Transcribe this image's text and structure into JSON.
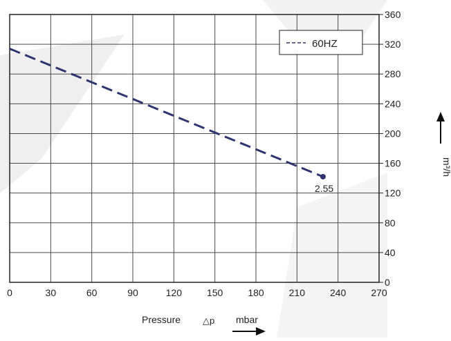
{
  "chart_data": {
    "type": "line",
    "xlabel": "Pressure",
    "xlabel_symbol": "△p",
    "xlabel_unit": "mbar",
    "ylabel": "m³/h",
    "xlim": [
      0,
      270
    ],
    "ylim": [
      0,
      360
    ],
    "x_ticks": [
      "0",
      "30",
      "60",
      "90",
      "120",
      "150",
      "180",
      "210",
      "240",
      "270"
    ],
    "y_ticks": [
      "0",
      "40",
      "80",
      "120",
      "160",
      "200",
      "240",
      "280",
      "320",
      "360"
    ],
    "grid": true,
    "legend_position": "top-right",
    "series": [
      {
        "name": "60HZ",
        "style": "dashed",
        "color": "#2e3470",
        "x": [
          0,
          229
        ],
        "y": [
          314,
          142
        ]
      }
    ],
    "annotations": [
      {
        "text": "2.55",
        "x": 229,
        "y": 142
      }
    ]
  },
  "colors": {
    "grid": "#4a4a4a",
    "frame": "#222222",
    "series": "#2e3470",
    "watermark": "#eeeeee"
  }
}
